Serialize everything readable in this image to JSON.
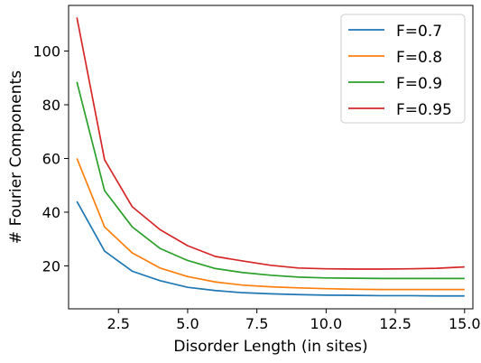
{
  "chart_data": {
    "type": "line",
    "title": "",
    "xlabel": "Disorder Length (in sites)",
    "ylabel": "# Fourier Components",
    "xlim": [
      0.7,
      15.3
    ],
    "ylim": [
      4,
      117
    ],
    "xticks": [
      2.5,
      5.0,
      7.5,
      10.0,
      12.5,
      15.0
    ],
    "xtick_labels": [
      "2.5",
      "5.0",
      "7.5",
      "10.0",
      "12.5",
      "15.0"
    ],
    "yticks": [
      20,
      40,
      60,
      80,
      100
    ],
    "ytick_labels": [
      "20",
      "40",
      "60",
      "80",
      "100"
    ],
    "grid": false,
    "legend_position": "top-right",
    "x": [
      1,
      2,
      3,
      4,
      5,
      6,
      7,
      8,
      9,
      10,
      11,
      12,
      13,
      14,
      15
    ],
    "series": [
      {
        "name": "F=0.7",
        "color": "#1f77b4",
        "values": [
          44,
          25.5,
          18,
          14.5,
          12,
          10.8,
          10,
          9.6,
          9.3,
          9.1,
          9.0,
          8.9,
          8.9,
          8.8,
          8.8
        ]
      },
      {
        "name": "F=0.8",
        "color": "#ff7f0e",
        "values": [
          60,
          34.5,
          24.8,
          19.2,
          16,
          14,
          12.8,
          12.2,
          11.8,
          11.5,
          11.3,
          11.2,
          11.2,
          11.2,
          11.2
        ]
      },
      {
        "name": "F=0.9",
        "color": "#2ca02c",
        "values": [
          88.5,
          48,
          34.5,
          26.5,
          22,
          19,
          17.5,
          16.5,
          15.8,
          15.5,
          15.4,
          15.3,
          15.3,
          15.3,
          15.3
        ]
      },
      {
        "name": "F=0.95",
        "color": "#d62728",
        "values": [
          112.5,
          59.5,
          42,
          33.5,
          27.5,
          23.5,
          21.8,
          20.2,
          19.2,
          18.9,
          18.8,
          18.8,
          18.9,
          19.1,
          19.6
        ]
      }
    ]
  }
}
